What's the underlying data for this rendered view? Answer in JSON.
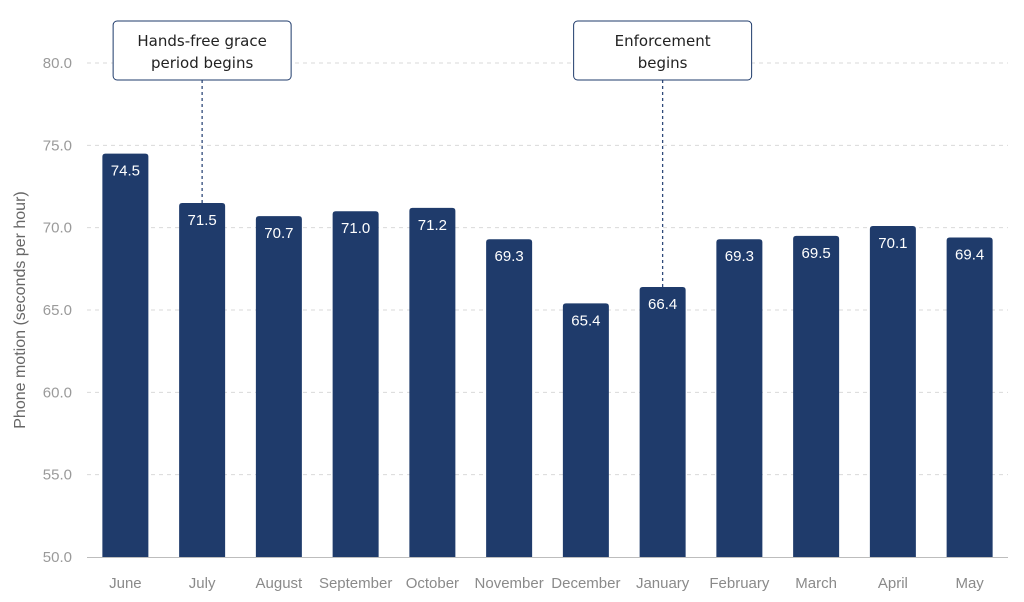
{
  "chart_data": {
    "type": "bar",
    "categories": [
      "June",
      "July",
      "August",
      "September",
      "October",
      "November",
      "December",
      "January",
      "February",
      "March",
      "April",
      "May"
    ],
    "values": [
      74.5,
      71.5,
      70.7,
      71.0,
      71.2,
      69.3,
      65.4,
      66.4,
      69.3,
      69.5,
      70.1,
      69.4
    ],
    "data_labels": [
      "74.5",
      "71.5",
      "70.7",
      "71.0",
      "71.2",
      "69.3",
      "65.4",
      "66.4",
      "69.3",
      "69.5",
      "70.1",
      "69.4"
    ],
    "title": "",
    "xlabel": "",
    "ylabel": "Phone motion (seconds per hour)",
    "ylim": [
      50,
      82
    ],
    "yticks": [
      50,
      55,
      60,
      65,
      70,
      75,
      80
    ],
    "ytick_labels": [
      "50.0",
      "55.0",
      "60.0",
      "65.0",
      "70.0",
      "75.0",
      "80.0"
    ],
    "grid": true,
    "bar_color": "#1f3b6b",
    "annotations": [
      {
        "category": "July",
        "lines": [
          "Hands-free grace",
          "period begins"
        ]
      },
      {
        "category": "January",
        "lines": [
          "Enforcement",
          "begins"
        ]
      }
    ]
  }
}
